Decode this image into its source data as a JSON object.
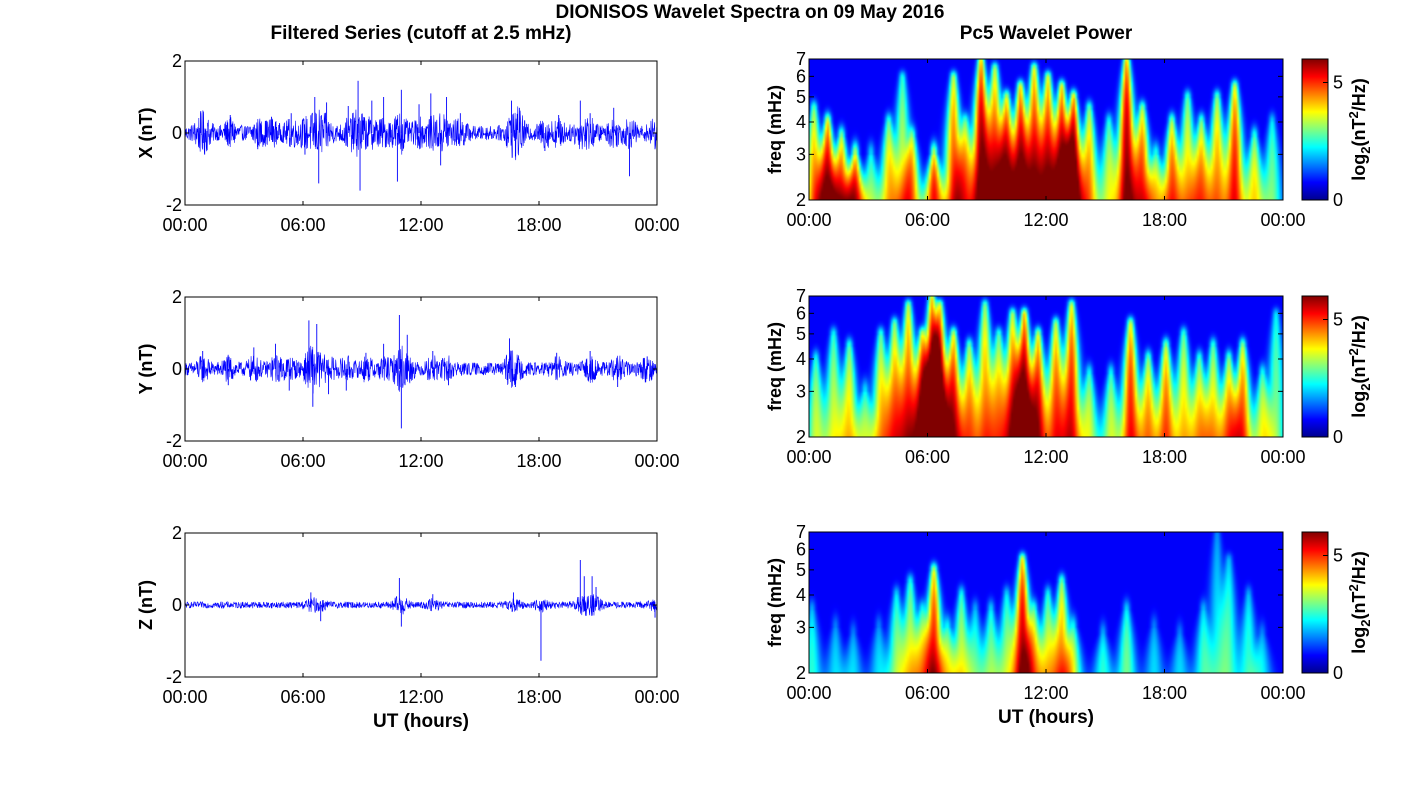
{
  "figure": {
    "title": "DIONISOS Wavelet Spectra on 09 May 2016",
    "left_title": "Filtered Series (cutoff at 2.5 mHz)",
    "right_title": "Pc5 Wavelet Power",
    "xlabel": "UT (hours)",
    "colorbar_label_prefix": "log",
    "colorbar_label_subscript": "2",
    "colorbar_label_paren_open": "(nT",
    "colorbar_label_superscript": "2",
    "colorbar_label_suffix": "/Hz)"
  },
  "colors": {
    "trace": "#0000ff",
    "axes": "#000000",
    "background": "#ffffff",
    "colormap": "jet"
  },
  "chart_data": [
    {
      "type": "line",
      "component": "X",
      "ylabel": "X (nT)",
      "xlim": [
        0,
        24
      ],
      "ylim": [
        -2,
        2
      ],
      "xticks": [
        "00:00",
        "06:00",
        "12:00",
        "18:00",
        "00:00"
      ],
      "yticks": [
        "-2",
        "0",
        "2"
      ],
      "noise_amplitude_nT": 0.2,
      "spikes": [
        {
          "t": 0.8,
          "v": 0.55
        },
        {
          "t": 1.0,
          "v": -0.6
        },
        {
          "t": 2.3,
          "v": 0.5
        },
        {
          "t": 3.7,
          "v": -0.45
        },
        {
          "t": 4.4,
          "v": 0.45
        },
        {
          "t": 5.4,
          "v": 0.55
        },
        {
          "t": 6.1,
          "v": -0.6
        },
        {
          "t": 6.6,
          "v": 1.0
        },
        {
          "t": 6.8,
          "v": -1.4
        },
        {
          "t": 7.2,
          "v": 0.85
        },
        {
          "t": 8.3,
          "v": 0.75
        },
        {
          "t": 8.8,
          "v": 1.45
        },
        {
          "t": 8.9,
          "v": -1.6
        },
        {
          "t": 9.5,
          "v": 0.9
        },
        {
          "t": 10.1,
          "v": 1.0
        },
        {
          "t": 10.8,
          "v": -1.35
        },
        {
          "t": 11.0,
          "v": 1.2
        },
        {
          "t": 11.9,
          "v": 0.8
        },
        {
          "t": 12.5,
          "v": 1.1
        },
        {
          "t": 13.0,
          "v": -0.9
        },
        {
          "t": 13.3,
          "v": 1.0
        },
        {
          "t": 14.0,
          "v": 0.55
        },
        {
          "t": 16.6,
          "v": 0.9
        },
        {
          "t": 16.8,
          "v": -0.65
        },
        {
          "t": 17.0,
          "v": 0.7
        },
        {
          "t": 18.3,
          "v": -0.5
        },
        {
          "t": 19.0,
          "v": 0.5
        },
        {
          "t": 20.1,
          "v": 0.9
        },
        {
          "t": 20.6,
          "v": 0.55
        },
        {
          "t": 21.8,
          "v": 0.7
        },
        {
          "t": 22.6,
          "v": -1.2
        },
        {
          "t": 23.9,
          "v": -0.45
        }
      ]
    },
    {
      "type": "line",
      "component": "Y",
      "ylabel": "Y (nT)",
      "xlim": [
        0,
        24
      ],
      "ylim": [
        -2,
        2
      ],
      "xticks": [
        "00:00",
        "06:00",
        "12:00",
        "18:00",
        "00:00"
      ],
      "yticks": [
        "-2",
        "0",
        "2"
      ],
      "noise_amplitude_nT": 0.18,
      "spikes": [
        {
          "t": 0.9,
          "v": 0.5
        },
        {
          "t": 2.2,
          "v": -0.45
        },
        {
          "t": 3.5,
          "v": 0.6
        },
        {
          "t": 4.6,
          "v": 0.7
        },
        {
          "t": 5.3,
          "v": -0.6
        },
        {
          "t": 6.3,
          "v": 1.35
        },
        {
          "t": 6.5,
          "v": -1.05
        },
        {
          "t": 6.7,
          "v": 1.25
        },
        {
          "t": 7.3,
          "v": -0.7
        },
        {
          "t": 8.2,
          "v": -0.6
        },
        {
          "t": 9.2,
          "v": 0.45
        },
        {
          "t": 10.1,
          "v": 0.7
        },
        {
          "t": 10.9,
          "v": 1.5
        },
        {
          "t": 11.0,
          "v": -1.65
        },
        {
          "t": 11.3,
          "v": 0.95
        },
        {
          "t": 12.6,
          "v": 0.5
        },
        {
          "t": 13.4,
          "v": -0.45
        },
        {
          "t": 16.5,
          "v": 0.85
        },
        {
          "t": 16.8,
          "v": -0.5
        },
        {
          "t": 18.9,
          "v": 0.45
        },
        {
          "t": 20.6,
          "v": 0.5
        },
        {
          "t": 22.0,
          "v": -0.5
        },
        {
          "t": 23.5,
          "v": 0.35
        }
      ]
    },
    {
      "type": "line",
      "component": "Z",
      "ylabel": "Z (nT)",
      "xlim": [
        0,
        24
      ],
      "ylim": [
        -2,
        2
      ],
      "xticks": [
        "00:00",
        "06:00",
        "12:00",
        "18:00",
        "00:00"
      ],
      "yticks": [
        "-2",
        "0",
        "2"
      ],
      "noise_amplitude_nT": 0.09,
      "spikes": [
        {
          "t": 6.4,
          "v": 0.35
        },
        {
          "t": 6.9,
          "v": -0.45
        },
        {
          "t": 10.9,
          "v": 0.75
        },
        {
          "t": 11.0,
          "v": -0.6
        },
        {
          "t": 12.6,
          "v": 0.3
        },
        {
          "t": 16.7,
          "v": 0.35
        },
        {
          "t": 18.1,
          "v": -1.55
        },
        {
          "t": 20.1,
          "v": 1.25
        },
        {
          "t": 20.3,
          "v": 0.8
        },
        {
          "t": 20.7,
          "v": 0.8
        },
        {
          "t": 20.9,
          "v": 0.5
        },
        {
          "t": 23.9,
          "v": -0.35
        }
      ]
    },
    {
      "type": "heatmap",
      "component": "X",
      "ylabel": "freq (mHz)",
      "xlim": [
        0,
        24
      ],
      "ylim": [
        2,
        7
      ],
      "yscale": "log",
      "xticks": [
        "00:00",
        "06:00",
        "12:00",
        "18:00",
        "00:00"
      ],
      "yticks": [
        "2",
        "3",
        "4",
        "5",
        "6",
        "7"
      ],
      "colorbar_ticks": [
        "0",
        "5"
      ],
      "clim": [
        0,
        6
      ],
      "bursts": [
        {
          "t": 0.2,
          "top": 4.5,
          "p": 4.0
        },
        {
          "t": 0.9,
          "top": 4.0,
          "p": 5.5
        },
        {
          "t": 1.6,
          "top": 3.5,
          "p": 4.5
        },
        {
          "t": 2.3,
          "top": 3.0,
          "p": 5.0
        },
        {
          "t": 3.1,
          "top": 3.0,
          "p": 2.5
        },
        {
          "t": 4.0,
          "top": 4.0,
          "p": 3.5
        },
        {
          "t": 4.7,
          "top": 6.0,
          "p": 3.0
        },
        {
          "t": 5.2,
          "top": 3.5,
          "p": 3.5
        },
        {
          "t": 6.3,
          "top": 3.0,
          "p": 5.0
        },
        {
          "t": 7.3,
          "top": 6.0,
          "p": 4.5
        },
        {
          "t": 7.9,
          "top": 4.0,
          "p": 3.5
        },
        {
          "t": 8.7,
          "top": 7.0,
          "p": 5.8
        },
        {
          "t": 9.4,
          "top": 6.5,
          "p": 4.5
        },
        {
          "t": 10.0,
          "top": 5.0,
          "p": 5.0
        },
        {
          "t": 10.7,
          "top": 5.5,
          "p": 5.5
        },
        {
          "t": 11.4,
          "top": 6.5,
          "p": 5.0
        },
        {
          "t": 12.1,
          "top": 6.0,
          "p": 5.0
        },
        {
          "t": 12.8,
          "top": 5.5,
          "p": 5.5
        },
        {
          "t": 13.4,
          "top": 5.0,
          "p": 6.0
        },
        {
          "t": 14.2,
          "top": 4.5,
          "p": 4.0
        },
        {
          "t": 15.2,
          "top": 4.0,
          "p": 3.0
        },
        {
          "t": 16.1,
          "top": 7.0,
          "p": 5.8
        },
        {
          "t": 16.9,
          "top": 4.5,
          "p": 4.5
        },
        {
          "t": 17.6,
          "top": 3.0,
          "p": 3.0
        },
        {
          "t": 18.4,
          "top": 4.0,
          "p": 4.5
        },
        {
          "t": 19.2,
          "top": 5.0,
          "p": 3.5
        },
        {
          "t": 19.9,
          "top": 4.0,
          "p": 4.0
        },
        {
          "t": 20.7,
          "top": 5.0,
          "p": 4.0
        },
        {
          "t": 21.6,
          "top": 5.5,
          "p": 5.0
        },
        {
          "t": 22.6,
          "top": 3.5,
          "p": 3.5
        },
        {
          "t": 23.5,
          "top": 4.0,
          "p": 2.5
        }
      ]
    },
    {
      "type": "heatmap",
      "component": "Y",
      "ylabel": "freq (mHz)",
      "xlim": [
        0,
        24
      ],
      "ylim": [
        2,
        7
      ],
      "yscale": "log",
      "xticks": [
        "00:00",
        "06:00",
        "12:00",
        "18:00",
        "00:00"
      ],
      "yticks": [
        "2",
        "3",
        "4",
        "5",
        "6",
        "7"
      ],
      "colorbar_ticks": [
        "0",
        "5"
      ],
      "clim": [
        0,
        6
      ],
      "bursts": [
        {
          "t": 0.3,
          "top": 4.0,
          "p": 3.0
        },
        {
          "t": 1.2,
          "top": 5.0,
          "p": 3.0
        },
        {
          "t": 2.0,
          "top": 4.5,
          "p": 3.5
        },
        {
          "t": 2.8,
          "top": 3.0,
          "p": 2.5
        },
        {
          "t": 3.6,
          "top": 5.0,
          "p": 3.5
        },
        {
          "t": 4.3,
          "top": 5.5,
          "p": 4.0
        },
        {
          "t": 5.0,
          "top": 6.5,
          "p": 4.5
        },
        {
          "t": 5.7,
          "top": 5.0,
          "p": 4.5
        },
        {
          "t": 6.2,
          "top": 7.0,
          "p": 5.5
        },
        {
          "t": 6.6,
          "top": 6.5,
          "p": 5.0
        },
        {
          "t": 7.3,
          "top": 5.0,
          "p": 5.0
        },
        {
          "t": 8.1,
          "top": 4.5,
          "p": 4.0
        },
        {
          "t": 8.9,
          "top": 6.5,
          "p": 4.0
        },
        {
          "t": 9.6,
          "top": 5.0,
          "p": 3.5
        },
        {
          "t": 10.3,
          "top": 6.0,
          "p": 4.5
        },
        {
          "t": 10.9,
          "top": 6.0,
          "p": 5.8
        },
        {
          "t": 11.6,
          "top": 5.0,
          "p": 5.0
        },
        {
          "t": 12.5,
          "top": 5.5,
          "p": 4.5
        },
        {
          "t": 13.3,
          "top": 6.5,
          "p": 5.0
        },
        {
          "t": 14.2,
          "top": 3.5,
          "p": 3.0
        },
        {
          "t": 15.3,
          "top": 3.5,
          "p": 3.0
        },
        {
          "t": 16.3,
          "top": 5.5,
          "p": 5.0
        },
        {
          "t": 17.2,
          "top": 4.0,
          "p": 4.0
        },
        {
          "t": 18.1,
          "top": 4.5,
          "p": 4.5
        },
        {
          "t": 19.0,
          "top": 5.0,
          "p": 3.5
        },
        {
          "t": 19.8,
          "top": 4.0,
          "p": 3.5
        },
        {
          "t": 20.5,
          "top": 4.5,
          "p": 3.5
        },
        {
          "t": 21.3,
          "top": 4.0,
          "p": 4.0
        },
        {
          "t": 22.0,
          "top": 4.5,
          "p": 4.5
        },
        {
          "t": 23.0,
          "top": 3.5,
          "p": 3.0
        },
        {
          "t": 23.7,
          "top": 6.0,
          "p": 2.5
        }
      ]
    },
    {
      "type": "heatmap",
      "component": "Z",
      "ylabel": "freq (mHz)",
      "xlim": [
        0,
        24
      ],
      "ylim": [
        2,
        7
      ],
      "yscale": "log",
      "xticks": [
        "00:00",
        "06:00",
        "12:00",
        "18:00",
        "00:00"
      ],
      "yticks": [
        "2",
        "3",
        "4",
        "5",
        "6",
        "7"
      ],
      "colorbar_ticks": [
        "0",
        "5"
      ],
      "clim": [
        0,
        6
      ],
      "bursts": [
        {
          "t": 0.1,
          "top": 3.5,
          "p": 2.0
        },
        {
          "t": 1.3,
          "top": 3.0,
          "p": 1.5
        },
        {
          "t": 2.2,
          "top": 2.8,
          "p": 1.5
        },
        {
          "t": 3.5,
          "top": 3.0,
          "p": 1.5
        },
        {
          "t": 4.4,
          "top": 4.0,
          "p": 2.5
        },
        {
          "t": 5.1,
          "top": 4.5,
          "p": 3.0
        },
        {
          "t": 5.7,
          "top": 3.5,
          "p": 2.5
        },
        {
          "t": 6.3,
          "top": 5.0,
          "p": 5.0
        },
        {
          "t": 7.0,
          "top": 3.0,
          "p": 2.5
        },
        {
          "t": 7.7,
          "top": 4.0,
          "p": 3.0
        },
        {
          "t": 8.4,
          "top": 3.5,
          "p": 2.0
        },
        {
          "t": 9.2,
          "top": 3.5,
          "p": 2.5
        },
        {
          "t": 10.0,
          "top": 4.0,
          "p": 2.5
        },
        {
          "t": 10.8,
          "top": 5.5,
          "p": 5.5
        },
        {
          "t": 11.4,
          "top": 3.5,
          "p": 3.0
        },
        {
          "t": 12.1,
          "top": 4.0,
          "p": 3.0
        },
        {
          "t": 12.8,
          "top": 4.5,
          "p": 4.0
        },
        {
          "t": 13.4,
          "top": 3.0,
          "p": 2.5
        },
        {
          "t": 14.9,
          "top": 2.8,
          "p": 2.0
        },
        {
          "t": 16.1,
          "top": 3.5,
          "p": 2.5
        },
        {
          "t": 17.5,
          "top": 3.0,
          "p": 1.5
        },
        {
          "t": 18.8,
          "top": 2.8,
          "p": 1.5
        },
        {
          "t": 20.0,
          "top": 3.5,
          "p": 2.0
        },
        {
          "t": 21.3,
          "top": 5.5,
          "p": 2.0
        },
        {
          "t": 22.3,
          "top": 4.0,
          "p": 2.0
        },
        {
          "t": 23.0,
          "top": 2.8,
          "p": 1.5
        },
        {
          "t": 20.7,
          "top": 7.0,
          "p": 1.5
        }
      ]
    }
  ]
}
